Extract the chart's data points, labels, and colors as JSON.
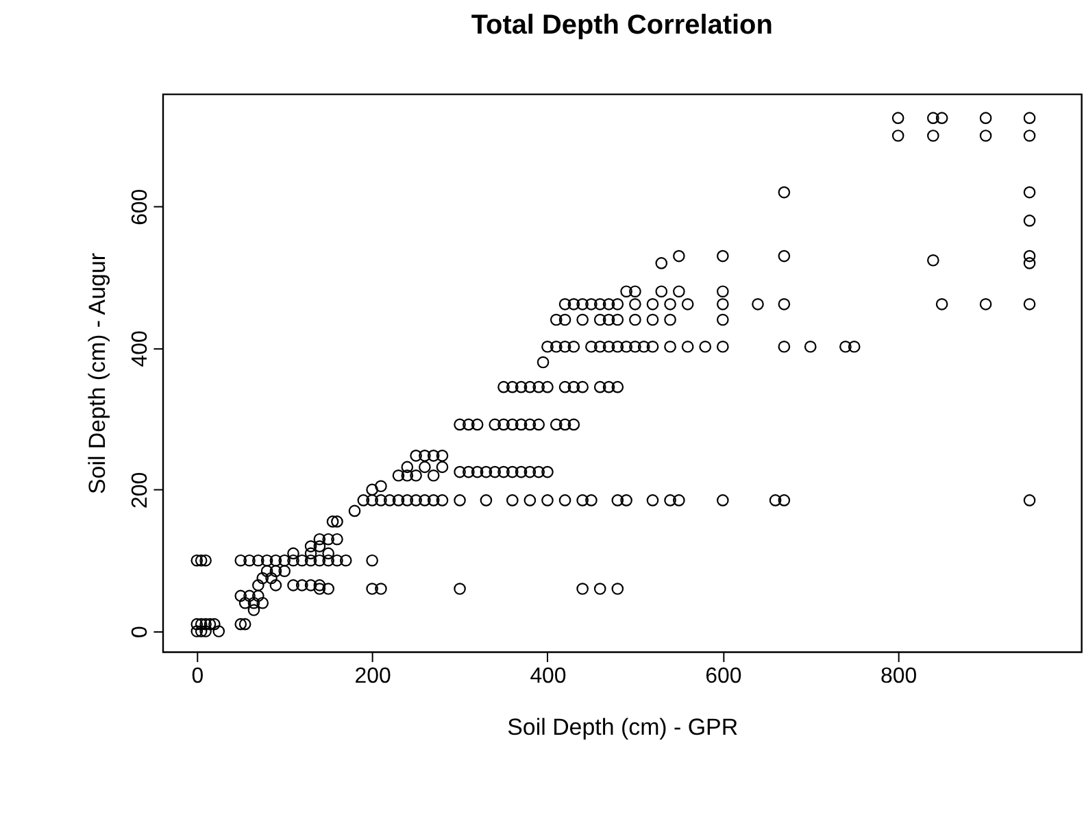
{
  "chart_data": {
    "type": "scatter",
    "title": "Total Depth Correlation",
    "xlabel": "Soil Depth (cm) - GPR",
    "ylabel": "Soil Depth (cm) - Augur",
    "xlim": [
      -39,
      1009
    ],
    "ylim": [
      -29,
      759
    ],
    "xticks": [
      0,
      200,
      400,
      600,
      800
    ],
    "yticks": [
      0,
      200,
      400,
      600
    ],
    "grid": false,
    "legend": false,
    "marker": "circle",
    "series": [
      {
        "color": "#000000",
        "x": [
          800,
          840,
          850,
          900,
          950,
          800,
          840,
          900,
          950,
          670,
          950,
          950,
          550,
          600,
          670,
          950,
          530,
          840,
          950,
          490,
          500,
          530,
          550,
          600,
          420,
          430,
          440,
          450,
          460,
          470,
          480,
          500,
          520,
          540,
          560,
          600,
          640,
          670,
          850,
          900,
          950,
          410,
          420,
          440,
          460,
          470,
          480,
          500,
          520,
          540,
          600,
          400,
          410,
          420,
          430,
          450,
          460,
          470,
          480,
          490,
          500,
          510,
          520,
          540,
          560,
          580,
          600,
          670,
          700,
          740,
          750,
          395,
          350,
          360,
          370,
          380,
          390,
          400,
          420,
          430,
          440,
          460,
          470,
          480,
          300,
          310,
          320,
          340,
          350,
          360,
          370,
          380,
          390,
          410,
          420,
          430,
          300,
          310,
          320,
          330,
          340,
          350,
          360,
          370,
          380,
          390,
          400,
          250,
          260,
          270,
          280,
          240,
          260,
          280,
          230,
          240,
          250,
          270,
          190,
          200,
          210,
          220,
          230,
          240,
          250,
          260,
          270,
          280,
          300,
          330,
          360,
          380,
          400,
          420,
          440,
          450,
          480,
          490,
          520,
          540,
          550,
          600,
          660,
          670,
          950,
          200,
          210,
          180,
          155,
          160,
          140,
          150,
          160,
          0,
          5,
          10,
          50,
          60,
          70,
          80,
          90,
          100,
          110,
          120,
          130,
          140,
          150,
          160,
          170,
          200,
          110,
          130,
          150,
          130,
          140,
          80,
          90,
          100,
          70,
          90,
          110,
          120,
          130,
          140,
          140,
          150,
          200,
          210,
          300,
          440,
          460,
          480,
          50,
          60,
          70,
          55,
          65,
          75,
          65,
          0,
          5,
          10,
          15,
          20,
          50,
          55,
          0,
          5,
          10,
          25,
          75,
          85
        ],
        "values": [
          725,
          725,
          725,
          725,
          725,
          700,
          700,
          700,
          700,
          620,
          620,
          580,
          530,
          530,
          530,
          530,
          520,
          524,
          520,
          480,
          480,
          480,
          480,
          480,
          462,
          462,
          462,
          462,
          462,
          462,
          462,
          462,
          462,
          462,
          462,
          462,
          462,
          462,
          462,
          462,
          462,
          440,
          440,
          440,
          440,
          440,
          440,
          440,
          440,
          440,
          440,
          402,
          402,
          402,
          402,
          402,
          402,
          402,
          402,
          402,
          402,
          402,
          402,
          402,
          402,
          402,
          402,
          402,
          402,
          402,
          402,
          380,
          345,
          345,
          345,
          345,
          345,
          345,
          345,
          345,
          345,
          345,
          345,
          345,
          292,
          292,
          292,
          292,
          292,
          292,
          292,
          292,
          292,
          292,
          292,
          292,
          225,
          225,
          225,
          225,
          225,
          225,
          225,
          225,
          225,
          225,
          225,
          248,
          248,
          248,
          248,
          232,
          232,
          232,
          220,
          220,
          220,
          220,
          185,
          185,
          185,
          185,
          185,
          185,
          185,
          185,
          185,
          185,
          185,
          185,
          185,
          185,
          185,
          185,
          185,
          185,
          185,
          185,
          185,
          185,
          185,
          185,
          185,
          185,
          185,
          200,
          205,
          170,
          155,
          155,
          130,
          130,
          130,
          100,
          100,
          100,
          100,
          100,
          100,
          100,
          100,
          100,
          100,
          100,
          100,
          100,
          100,
          100,
          100,
          100,
          110,
          110,
          110,
          120,
          120,
          85,
          85,
          85,
          65,
          65,
          65,
          65,
          65,
          65,
          60,
          60,
          60,
          60,
          60,
          60,
          60,
          60,
          50,
          50,
          50,
          40,
          40,
          40,
          30,
          10,
          10,
          10,
          10,
          10,
          10,
          10,
          0,
          0,
          0,
          0,
          75,
          75
        ]
      }
    ]
  }
}
